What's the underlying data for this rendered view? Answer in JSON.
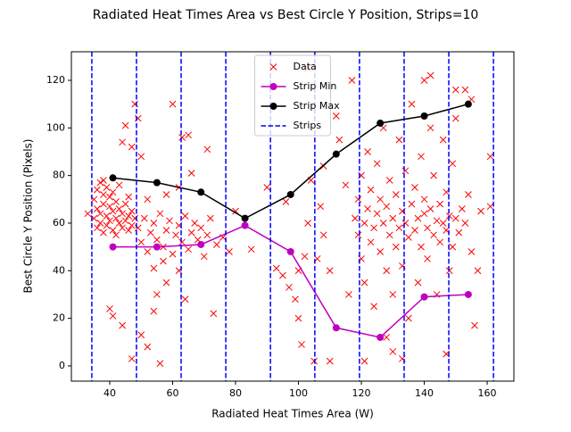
{
  "chart_data": {
    "type": "scatter",
    "title": "Radiated Heat Times Area vs Best Circle Y Position, Strips=10",
    "xlabel": "Radiated Heat Times Area (W)",
    "ylabel": "Best Circle Y Position (Pixels)",
    "xlim": [
      27.8,
      168.5
    ],
    "ylim": [
      -6.4,
      132
    ],
    "xticks": [
      40,
      60,
      80,
      100,
      120,
      140,
      160
    ],
    "yticks": [
      0,
      20,
      40,
      60,
      80,
      100,
      120
    ],
    "legend": "upper center",
    "series": [
      {
        "name": "Data",
        "color": "#ff0000",
        "marker": "x",
        "x": [
          35,
          35,
          36,
          36,
          36,
          37,
          37,
          37,
          38,
          38,
          38,
          39,
          39,
          39,
          40,
          40,
          40,
          41,
          41,
          41,
          42,
          42,
          43,
          43,
          43,
          44,
          44,
          45,
          45,
          46,
          46,
          47,
          47,
          48,
          33,
          38,
          42,
          46,
          40,
          41,
          44,
          45,
          44,
          47,
          47,
          49,
          48,
          50,
          52,
          54,
          56,
          55,
          58,
          60,
          63,
          65,
          66,
          71,
          73,
          57,
          62,
          64,
          49,
          50,
          51,
          52,
          53,
          54,
          55,
          56,
          57,
          58,
          59,
          60,
          61,
          62,
          63,
          64,
          65,
          66,
          67,
          68,
          69,
          70,
          71,
          72,
          74,
          76,
          78,
          80,
          52,
          58,
          62,
          54,
          50,
          85,
          90,
          93,
          95,
          96,
          97,
          99,
          100,
          100,
          101,
          102,
          103,
          104,
          105,
          106,
          107,
          108,
          110,
          110,
          112,
          113,
          115,
          116,
          117,
          103,
          108,
          118,
          119,
          119,
          120,
          120,
          121,
          121,
          122,
          122,
          123,
          123,
          124,
          124,
          125,
          125,
          126,
          126,
          127,
          127,
          128,
          128,
          129,
          129,
          130,
          130,
          131,
          131,
          132,
          132,
          133,
          133,
          134,
          134,
          135,
          135,
          136,
          136,
          137,
          137,
          138,
          138,
          139,
          139,
          140,
          140,
          141,
          141,
          142,
          142,
          143,
          143,
          144,
          144,
          145,
          145,
          146,
          146,
          147,
          147,
          148,
          148,
          149,
          149,
          150,
          150,
          151,
          152,
          153,
          154,
          155,
          156,
          157,
          158,
          161,
          161,
          121,
          130,
          133,
          128,
          140,
          142,
          150,
          153,
          155,
          147
        ],
        "y": [
          62,
          70,
          66,
          74,
          58,
          64,
          77,
          60,
          68,
          72,
          56,
          63,
          75,
          59,
          67,
          61,
          71,
          65,
          57,
          73,
          62,
          69,
          60,
          66,
          76,
          64,
          58,
          68,
          61,
          63,
          57,
          65,
          59,
          62,
          64,
          78,
          55,
          71,
          24,
          21,
          17,
          101,
          94,
          92,
          3,
          104,
          110,
          13,
          8,
          23,
          1,
          30,
          35,
          110,
          96,
          97,
          81,
          91,
          22,
          44,
          40,
          28,
          58,
          52,
          62,
          48,
          56,
          60,
          53,
          64,
          50,
          57,
          61,
          47,
          55,
          59,
          52,
          63,
          49,
          56,
          60,
          53,
          58,
          46,
          55,
          62,
          51,
          54,
          48,
          65,
          70,
          72,
          75,
          41,
          88,
          49,
          75,
          41,
          38,
          69,
          33,
          28,
          20,
          40,
          9,
          46,
          60,
          78,
          2,
          45,
          67,
          84,
          2,
          40,
          105,
          95,
          76,
          30,
          120,
          125,
          55,
          62,
          55,
          70,
          45,
          80,
          60,
          35,
          66,
          90,
          52,
          74,
          58,
          25,
          64,
          85,
          48,
          70,
          60,
          100,
          40,
          67,
          55,
          78,
          62,
          30,
          72,
          50,
          58,
          95,
          65,
          42,
          60,
          82,
          54,
          20,
          68,
          110,
          57,
          75,
          62,
          35,
          50,
          88,
          64,
          70,
          58,
          45,
          66,
          100,
          55,
          80,
          61,
          30,
          68,
          52,
          60,
          95,
          57,
          73,
          63,
          40,
          50,
          85,
          62,
          104,
          56,
          66,
          60,
          72,
          48,
          17,
          40,
          65,
          88,
          67,
          2,
          6,
          3,
          12,
          120,
          122,
          116,
          116,
          112,
          5
        ]
      },
      {
        "name": "Strip Min",
        "color": "#bf00bf",
        "marker": "o",
        "x": [
          41,
          55,
          69,
          83,
          97.5,
          112,
          126,
          140,
          154
        ],
        "y": [
          50,
          50,
          51,
          59,
          48,
          16,
          12,
          29,
          30
        ]
      },
      {
        "name": "Strip Max",
        "color": "#000000",
        "marker": "o",
        "x": [
          41,
          55,
          69,
          83,
          97.5,
          112,
          126,
          140,
          154
        ],
        "y": [
          79,
          77,
          73,
          62,
          72,
          89,
          102,
          105,
          110
        ]
      },
      {
        "name": "Strips",
        "color": "#0000ff",
        "linestyle": "dashed",
        "x": [
          34.3,
          48.5,
          62.7,
          76.9,
          91.1,
          105.2,
          119.4,
          133.6,
          147.8,
          162.0
        ]
      }
    ]
  }
}
